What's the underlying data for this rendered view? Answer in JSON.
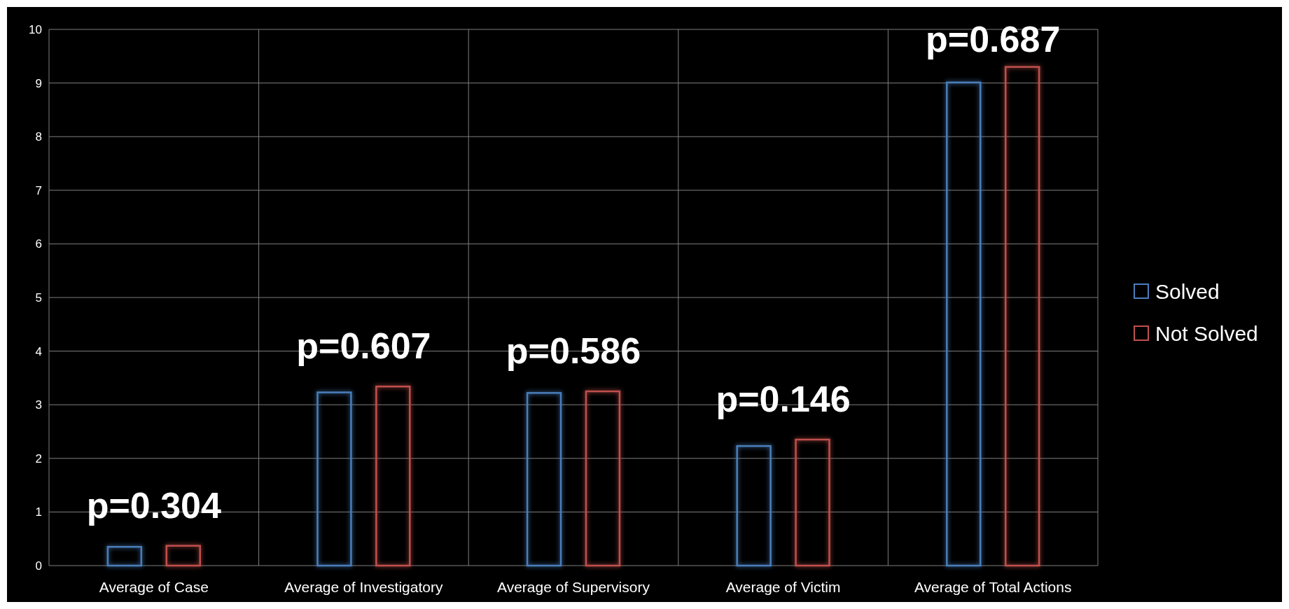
{
  "chart_data": {
    "type": "bar",
    "categories": [
      "Average of Case",
      "Average of Investigatory",
      "Average of Supervisory",
      "Average of Victim",
      "Average of Total Actions"
    ],
    "series": [
      {
        "name": "Solved",
        "color": "#4a7ebb",
        "values": [
          0.35,
          3.23,
          3.22,
          2.23,
          9.01
        ]
      },
      {
        "name": "Not Solved",
        "color": "#c0504d",
        "values": [
          0.37,
          3.34,
          3.25,
          2.35,
          9.3
        ]
      }
    ],
    "ylim": [
      0,
      10
    ],
    "yticks": [
      0,
      1,
      2,
      3,
      4,
      5,
      6,
      7,
      8,
      9,
      10
    ],
    "grid": true,
    "legend": "right",
    "annotations": [
      "p=0.304",
      "p=0.607",
      "p=0.586",
      "p=0.146",
      "p=0.687"
    ]
  }
}
